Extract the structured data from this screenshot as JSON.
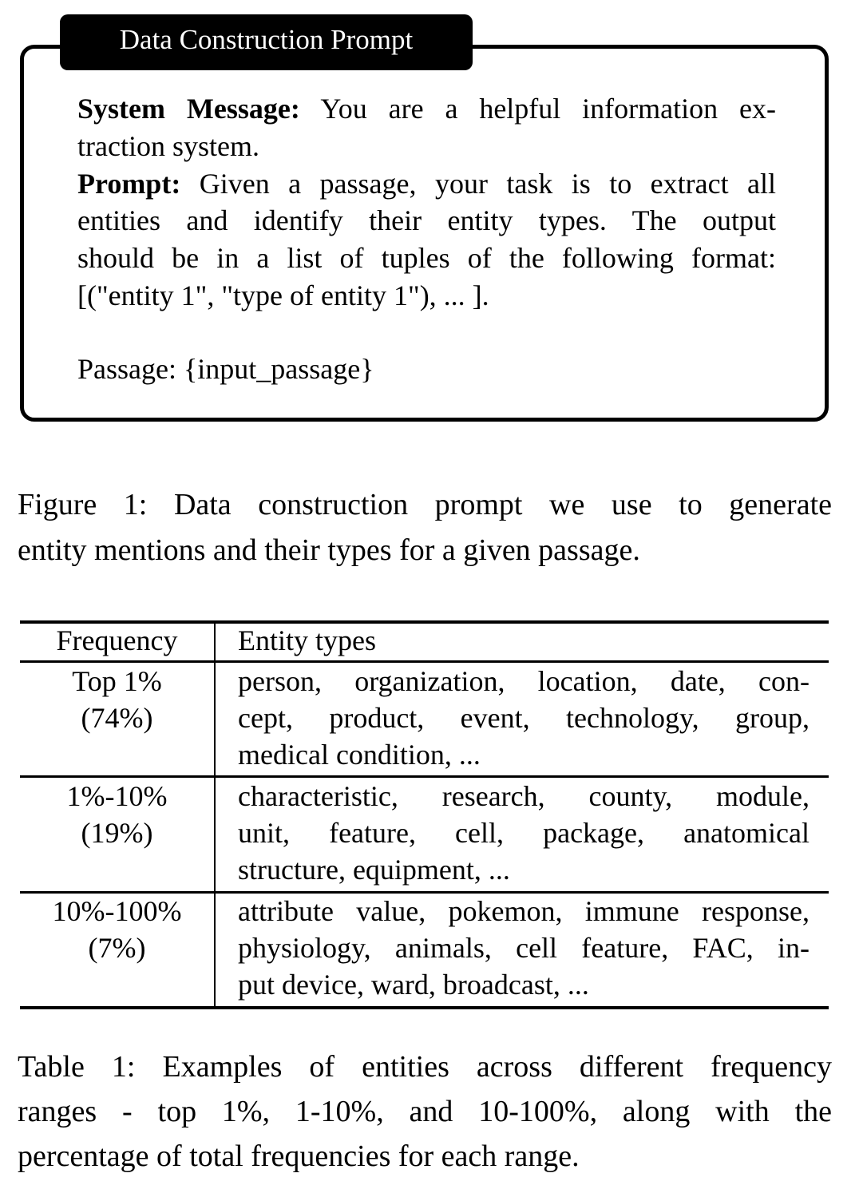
{
  "figure_box": {
    "title": "Data Construction Prompt",
    "system_label": "System Message:",
    "system_line1": " You are a helpful information ex-",
    "system_line2": "traction system.",
    "prompt_label": "Prompt:",
    "prompt_line1": " Given a passage, your task is to extract all",
    "prompt_line2": "entities and identify their entity types.  The output",
    "prompt_line3": "should be in a list of tuples of the following format:",
    "prompt_line4": "[(\"entity 1\", \"type of entity 1\"), ... ].",
    "passage_line": "Passage: {input_passage}"
  },
  "figure_caption": {
    "line1": "Figure 1: Data construction prompt we use to generate",
    "line2": "entity mentions and their types for a given passage."
  },
  "table": {
    "headers": [
      "Frequency",
      "Entity types"
    ],
    "rows": [
      {
        "freq": [
          "Top 1%",
          "(74%)"
        ],
        "types": [
          "person, organization, location, date, con-",
          "cept, product, event, technology, group,",
          "medical condition, ..."
        ]
      },
      {
        "freq": [
          "1%-10%",
          "(19%)"
        ],
        "types": [
          "characteristic, research, county, module,",
          "unit, feature, cell, package, anatomical",
          "structure, equipment, ..."
        ]
      },
      {
        "freq": [
          "10%-100%",
          "(7%)"
        ],
        "types": [
          "attribute value, pokemon, immune response,",
          "physiology, animals, cell feature, FAC, in-",
          "put device, ward, broadcast, ..."
        ]
      }
    ]
  },
  "table_caption": {
    "line1": "Table 1: Examples of entities across different frequency",
    "line2": "ranges - top 1%, 1-10%, and 10-100%, along with the",
    "line3": "percentage of total frequencies for each range."
  }
}
